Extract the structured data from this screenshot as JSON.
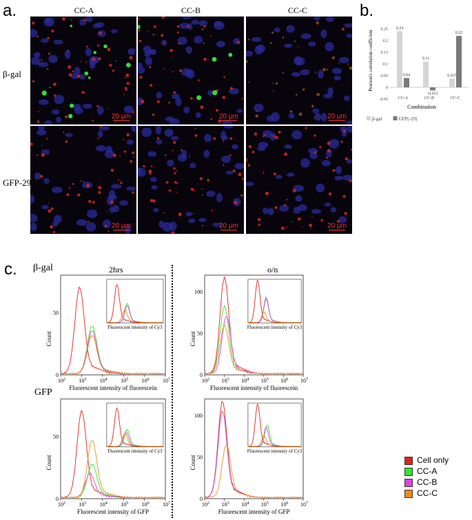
{
  "panel_a": {
    "letter": "a.",
    "columns": [
      "CC-A",
      "CC-B",
      "CC-C"
    ],
    "rows": [
      "β-gal",
      "GFP-29"
    ],
    "scale_label": "20 μm"
  },
  "panel_b": {
    "letter": "b."
  },
  "panel_c": {
    "letter": "c.",
    "top_left_label": "β-gal",
    "mid_left_label": "GFP",
    "time_2hrs": "2hrs",
    "time_on": "o/n",
    "xlabel_top": "Fluorescent intensity of fluorescein",
    "xlabel_bottom": "Fluorescent intensity of GFP",
    "inset_xlabel": "Fluorescent intensity of Cy3",
    "ylabel": "Count",
    "legend": [
      {
        "label": "Cell only",
        "color": "#e8201c"
      },
      {
        "label": "CC-A",
        "color": "#2ee82e"
      },
      {
        "label": "CC-B",
        "color": "#e040e0"
      },
      {
        "label": "CC-C",
        "color": "#f28a1a"
      }
    ]
  },
  "chart_data": {
    "type": "bar",
    "categories": [
      "CC-A",
      "CC-B",
      "CC-C"
    ],
    "series": [
      {
        "name": "β-gal",
        "values": [
          0.24,
          0.11,
          0.037
        ],
        "labels": [
          "0.24",
          "0.11",
          "0.037"
        ],
        "color": "#d4d4d4"
      },
      {
        "name": "GFP(-29)",
        "values": [
          0.04,
          -0.013,
          0.22
        ],
        "labels": [
          "0.04",
          "-0.013",
          "0.22"
        ],
        "color": "#7a7a7a"
      }
    ],
    "title": "",
    "xlabel": "Combination",
    "ylabel": "Pearson's correlation coefficient",
    "ylim": [
      -0.05,
      0.25
    ],
    "yticks": [
      "0.25",
      "0.2",
      "0.15",
      "0.1",
      "0.05",
      "0",
      "-0.05"
    ],
    "grid": false,
    "legend_position": "bottom"
  }
}
